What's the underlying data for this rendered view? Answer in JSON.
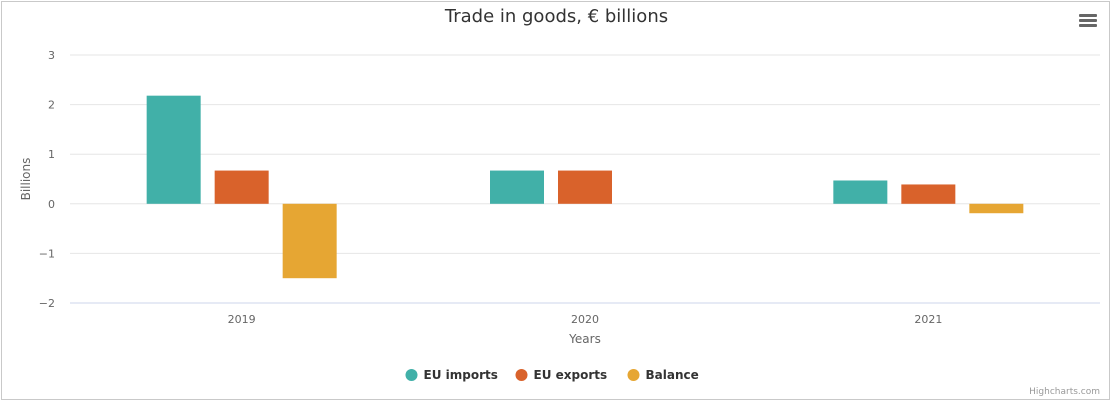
{
  "chart_data": {
    "type": "bar",
    "title": "Trade in goods, € billions",
    "xlabel": "Years",
    "ylabel": "Billions",
    "categories": [
      "2019",
      "2020",
      "2021"
    ],
    "ylim": [
      -2,
      3
    ],
    "yticks": [
      "−2",
      "−1",
      "0",
      "1",
      "2",
      "3"
    ],
    "ytick_values": [
      -2,
      -1,
      0,
      1,
      2,
      3
    ],
    "grid": true,
    "legend_position": "bottom-center",
    "series": [
      {
        "name": "EU imports",
        "color": "#41b0a8",
        "values": [
          2.18,
          0.67,
          0.47
        ]
      },
      {
        "name": "EU exports",
        "color": "#d9622b",
        "values": [
          0.67,
          0.67,
          0.39
        ]
      },
      {
        "name": "Balance",
        "color": "#e6a633",
        "values": [
          -1.5,
          0.0,
          -0.19
        ]
      }
    ]
  },
  "credits": "Highcharts.com",
  "menu_icon": "hamburger-menu-icon"
}
